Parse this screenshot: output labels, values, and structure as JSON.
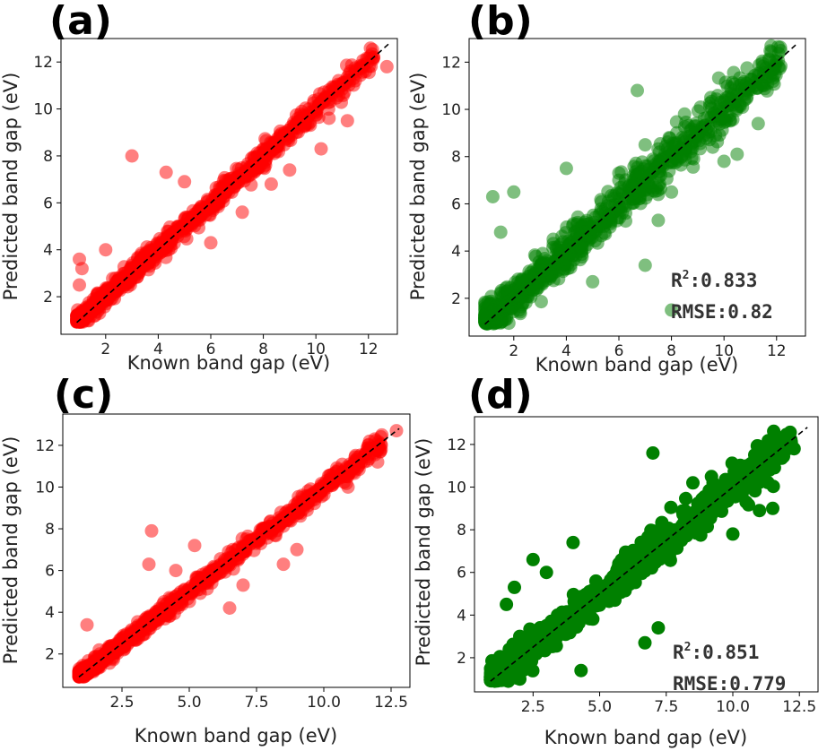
{
  "chart_data": [
    {
      "panel_label": "(a)",
      "type": "scatter",
      "color": "#ff0000",
      "alpha": 0.5,
      "xlabel": "Known band gap (eV)",
      "ylabel": "Predicted band gap (eV)",
      "xlim": [
        0.3,
        13.1
      ],
      "ylim": [
        0.4,
        13.0
      ],
      "xticks": [
        "2",
        "4",
        "6",
        "8",
        "10",
        "12"
      ],
      "xtick_values": [
        2,
        4,
        6,
        8,
        10,
        12
      ],
      "yticks": [
        "2",
        "4",
        "6",
        "8",
        "10",
        "12"
      ],
      "ytick_values": [
        2,
        4,
        6,
        8,
        10,
        12
      ],
      "diagonal": [
        [
          0.9,
          0.9
        ],
        [
          12.8,
          12.8
        ]
      ],
      "noise": 0.28,
      "points": [
        [
          1.0,
          1.1
        ],
        [
          1.2,
          1.0
        ],
        [
          1.1,
          1.4
        ],
        [
          1.5,
          1.6
        ],
        [
          1.8,
          1.7
        ],
        [
          2.0,
          2.1
        ],
        [
          2.5,
          2.4
        ],
        [
          3.0,
          3.2
        ],
        [
          3.5,
          3.4
        ],
        [
          4.0,
          4.2
        ],
        [
          4.5,
          4.4
        ],
        [
          5.0,
          5.1
        ],
        [
          5.5,
          5.6
        ],
        [
          6.0,
          5.9
        ],
        [
          6.5,
          6.6
        ],
        [
          7.0,
          7.1
        ],
        [
          7.5,
          7.4
        ],
        [
          8.0,
          8.1
        ],
        [
          8.5,
          8.4
        ],
        [
          9.0,
          9.1
        ],
        [
          9.5,
          9.4
        ],
        [
          10.0,
          10.1
        ],
        [
          10.5,
          10.4
        ],
        [
          11.0,
          11.0
        ],
        [
          11.5,
          11.2
        ],
        [
          12.7,
          11.8
        ],
        [
          3.0,
          8.0
        ],
        [
          1.1,
          3.2
        ],
        [
          1.0,
          3.6
        ],
        [
          4.3,
          7.3
        ],
        [
          6.0,
          4.3
        ],
        [
          7.2,
          5.6
        ],
        [
          10.5,
          9.6
        ],
        [
          9.0,
          7.4
        ],
        [
          1.0,
          2.5
        ],
        [
          2.0,
          4.0
        ],
        [
          5.0,
          6.9
        ],
        [
          8.3,
          6.8
        ],
        [
          11.2,
          9.5
        ],
        [
          10.2,
          8.3
        ]
      ]
    },
    {
      "panel_label": "(b)",
      "type": "scatter",
      "color": "#008000",
      "alpha": 0.5,
      "xlabel": "Known band gap (eV)",
      "ylabel": "Predicted band gap (eV)",
      "xlim": [
        0.3,
        13.1
      ],
      "ylim": [
        0.4,
        13.0
      ],
      "xticks": [
        "2",
        "4",
        "6",
        "8",
        "10",
        "12"
      ],
      "xtick_values": [
        2,
        4,
        6,
        8,
        10,
        12
      ],
      "yticks": [
        "2",
        "4",
        "6",
        "8",
        "10",
        "12"
      ],
      "ytick_values": [
        2,
        4,
        6,
        8,
        10,
        12
      ],
      "diagonal": [
        [
          0.9,
          0.9
        ],
        [
          12.8,
          12.8
        ]
      ],
      "noise": 0.55,
      "r2_label": "R",
      "r2_sup": "2",
      "r2_value": ":0.833",
      "rmse_text": "RMSE:0.82",
      "points": [
        [
          1.0,
          1.2
        ],
        [
          1.2,
          6.3
        ],
        [
          2.0,
          6.5
        ],
        [
          1.5,
          4.8
        ],
        [
          2.5,
          2.8
        ],
        [
          3.0,
          3.4
        ],
        [
          3.5,
          4.5
        ],
        [
          4.0,
          7.5
        ],
        [
          4.5,
          4.2
        ],
        [
          5.0,
          5.0
        ],
        [
          5.5,
          5.8
        ],
        [
          6.0,
          7.0
        ],
        [
          6.5,
          6.2
        ],
        [
          7.0,
          8.5
        ],
        [
          7.5,
          7.8
        ],
        [
          8.0,
          8.1
        ],
        [
          8.0,
          6.5
        ],
        [
          8.5,
          9.8
        ],
        [
          9.0,
          9.0
        ],
        [
          9.5,
          10.5
        ],
        [
          10.0,
          10.3
        ],
        [
          10.5,
          10.6
        ],
        [
          11.0,
          11.0
        ],
        [
          11.5,
          11.4
        ],
        [
          10.0,
          7.8
        ],
        [
          7.5,
          5.3
        ],
        [
          10.5,
          8.1
        ],
        [
          11.3,
          9.4
        ],
        [
          6.7,
          10.8
        ],
        [
          1.5,
          1.1
        ],
        [
          2.2,
          1.5
        ],
        [
          5.0,
          2.7
        ],
        [
          7.0,
          3.4
        ],
        [
          8.0,
          1.5
        ],
        [
          6.0,
          7.3
        ]
      ]
    },
    {
      "panel_label": "(c)",
      "type": "scatter",
      "color": "#ff0000",
      "alpha": 0.5,
      "xlabel": "Known band gap (eV)",
      "ylabel": "Predicted band gap (eV)",
      "xlim": [
        0.3,
        13.2
      ],
      "ylim": [
        0.4,
        13.5
      ],
      "xticks": [
        "2.5",
        "5.0",
        "7.5",
        "10.0",
        "12.5"
      ],
      "xtick_values": [
        2.5,
        5.0,
        7.5,
        10.0,
        12.5
      ],
      "yticks": [
        "2",
        "4",
        "6",
        "8",
        "10",
        "12"
      ],
      "ytick_values": [
        2,
        4,
        6,
        8,
        10,
        12
      ],
      "diagonal": [
        [
          0.9,
          0.9
        ],
        [
          12.8,
          12.8
        ]
      ],
      "noise": 0.26,
      "points": [
        [
          1.0,
          1.0
        ],
        [
          1.3,
          1.5
        ],
        [
          1.8,
          1.7
        ],
        [
          2.0,
          2.2
        ],
        [
          2.5,
          2.4
        ],
        [
          3.0,
          3.1
        ],
        [
          3.5,
          3.6
        ],
        [
          4.0,
          4.0
        ],
        [
          4.5,
          4.6
        ],
        [
          5.0,
          5.0
        ],
        [
          5.5,
          5.6
        ],
        [
          6.0,
          5.9
        ],
        [
          6.5,
          6.5
        ],
        [
          7.0,
          7.1
        ],
        [
          7.5,
          7.4
        ],
        [
          8.0,
          8.1
        ],
        [
          8.5,
          8.5
        ],
        [
          9.0,
          9.1
        ],
        [
          9.5,
          9.6
        ],
        [
          10.0,
          10.0
        ],
        [
          10.5,
          10.4
        ],
        [
          11.0,
          11.0
        ],
        [
          11.5,
          11.2
        ],
        [
          12.0,
          11.9
        ],
        [
          12.7,
          12.7
        ],
        [
          3.6,
          7.9
        ],
        [
          1.2,
          3.4
        ],
        [
          4.5,
          6.0
        ],
        [
          5.2,
          7.2
        ],
        [
          6.5,
          4.2
        ],
        [
          8.5,
          6.3
        ],
        [
          9.0,
          7.0
        ],
        [
          10.9,
          10.0
        ],
        [
          12.0,
          11.2
        ],
        [
          3.5,
          6.3
        ],
        [
          7.0,
          5.3
        ]
      ]
    },
    {
      "panel_label": "(d)",
      "type": "scatter",
      "color": "#008000",
      "alpha": 1.0,
      "xlabel": "Known band gap (eV)",
      "ylabel": "Predicted band gap (eV)",
      "xlim": [
        0.3,
        13.2
      ],
      "ylim": [
        0.4,
        13.3
      ],
      "xticks": [
        "2.5",
        "5.0",
        "7.5",
        "10.0",
        "12.5"
      ],
      "xtick_values": [
        2.5,
        5.0,
        7.5,
        10.0,
        12.5
      ],
      "yticks": [
        "2",
        "4",
        "6",
        "8",
        "10",
        "12"
      ],
      "ytick_values": [
        2,
        4,
        6,
        8,
        10,
        12
      ],
      "diagonal": [
        [
          0.9,
          0.9
        ],
        [
          12.8,
          12.8
        ]
      ],
      "noise": 0.55,
      "r2_label": "R",
      "r2_sup": "2",
      "r2_value": ":0.851",
      "rmse_text": "RMSE:0.779",
      "points": [
        [
          1.0,
          1.1
        ],
        [
          1.3,
          2.0
        ],
        [
          1.5,
          4.5
        ],
        [
          1.8,
          5.3
        ],
        [
          2.0,
          3.0
        ],
        [
          2.5,
          6.6
        ],
        [
          3.0,
          3.5
        ],
        [
          3.5,
          4.0
        ],
        [
          4.0,
          7.4
        ],
        [
          4.5,
          4.7
        ],
        [
          5.0,
          5.0
        ],
        [
          5.5,
          5.8
        ],
        [
          6.0,
          6.0
        ],
        [
          6.5,
          6.6
        ],
        [
          7.0,
          11.6
        ],
        [
          7.2,
          3.4
        ],
        [
          7.5,
          7.4
        ],
        [
          8.0,
          8.0
        ],
        [
          8.5,
          10.2
        ],
        [
          9.0,
          9.0
        ],
        [
          9.5,
          9.5
        ],
        [
          10.0,
          7.8
        ],
        [
          10.5,
          9.3
        ],
        [
          11.0,
          8.9
        ],
        [
          11.5,
          9.0
        ],
        [
          11.0,
          11.0
        ],
        [
          12.3,
          11.8
        ],
        [
          10.0,
          10.4
        ],
        [
          4.3,
          1.4
        ],
        [
          6.7,
          2.7
        ],
        [
          2.0,
          1.0
        ],
        [
          3.0,
          6.0
        ]
      ]
    }
  ]
}
